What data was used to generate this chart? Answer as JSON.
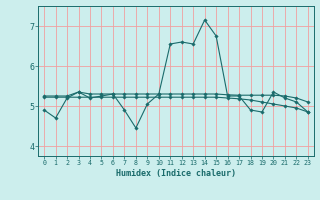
{
  "xlabel": "Humidex (Indice chaleur)",
  "ylabel": "",
  "xlim": [
    -0.5,
    23.5
  ],
  "ylim": [
    3.75,
    7.5
  ],
  "yticks": [
    4,
    5,
    6,
    7
  ],
  "xticks": [
    0,
    1,
    2,
    3,
    4,
    5,
    6,
    7,
    8,
    9,
    10,
    11,
    12,
    13,
    14,
    15,
    16,
    17,
    18,
    19,
    20,
    21,
    22,
    23
  ],
  "bg_color": "#cceeed",
  "line_color": "#1a6b6b",
  "grid_color": "#f0a0a0",
  "series": [
    [
      4.9,
      4.7,
      5.2,
      5.35,
      5.2,
      5.25,
      5.3,
      4.9,
      4.45,
      5.05,
      5.3,
      6.55,
      6.6,
      6.55,
      7.15,
      6.75,
      5.25,
      5.25,
      4.9,
      4.85,
      5.35,
      5.2,
      5.1,
      4.85
    ],
    [
      5.25,
      5.25,
      5.25,
      5.35,
      5.3,
      5.3,
      5.3,
      5.3,
      5.3,
      5.3,
      5.3,
      5.3,
      5.3,
      5.3,
      5.3,
      5.3,
      5.28,
      5.27,
      5.27,
      5.27,
      5.27,
      5.25,
      5.2,
      5.1
    ],
    [
      5.22,
      5.22,
      5.22,
      5.22,
      5.22,
      5.22,
      5.22,
      5.22,
      5.22,
      5.22,
      5.22,
      5.22,
      5.22,
      5.22,
      5.22,
      5.22,
      5.2,
      5.18,
      5.15,
      5.1,
      5.05,
      5.0,
      4.95,
      4.85
    ]
  ]
}
